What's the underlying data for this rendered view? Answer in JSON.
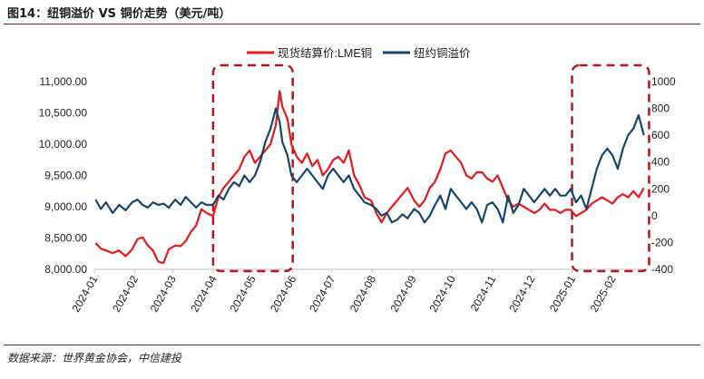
{
  "header": {
    "title": "图14：纽铜溢价 VS 铜价走势（美元/吨）"
  },
  "footer": {
    "source": "数据来源：世界黄金协会，中信建投"
  },
  "chart_data": {
    "type": "line",
    "title": "图14：纽铜溢价 VS 铜价走势（美元/吨）",
    "xlabel": "",
    "ylabel": "",
    "x_tick_labels": [
      "2024-01",
      "2024-02",
      "2024-03",
      "2024-04",
      "2024-05",
      "2024-06",
      "2024-07",
      "2024-08",
      "2024-09",
      "2024-10",
      "2024-11",
      "2024-12",
      "2025-01",
      "2025-02"
    ],
    "y_left": {
      "min": 8000,
      "max": 11000,
      "ticks": [
        8000,
        8500,
        9000,
        9500,
        10000,
        10500,
        11000
      ],
      "tick_labels": [
        "8,000.00",
        "8,500.00",
        "9,000.00",
        "9,500.00",
        "10,000.00",
        "10,500.00",
        "11,000.00"
      ]
    },
    "y_right": {
      "min": -400,
      "max": 1000,
      "ticks": [
        -400,
        -200,
        0,
        200,
        400,
        600,
        800,
        1000
      ],
      "tick_labels": [
        "-400",
        "-200",
        "0",
        "200",
        "400",
        "600",
        "800",
        "1000"
      ]
    },
    "legend_position": "top-center",
    "grid": false,
    "series": [
      {
        "name": "现货结算价:LME铜",
        "axis": "left",
        "color": "#e41a1c",
        "points": [
          [
            "2024-01-02",
            8420
          ],
          [
            "2024-01-06",
            8330
          ],
          [
            "2024-01-10",
            8300
          ],
          [
            "2024-01-15",
            8260
          ],
          [
            "2024-01-20",
            8300
          ],
          [
            "2024-01-25",
            8210
          ],
          [
            "2024-01-30",
            8320
          ],
          [
            "2024-02-03",
            8480
          ],
          [
            "2024-02-07",
            8510
          ],
          [
            "2024-02-11",
            8380
          ],
          [
            "2024-02-15",
            8300
          ],
          [
            "2024-02-19",
            8120
          ],
          [
            "2024-02-23",
            8100
          ],
          [
            "2024-02-27",
            8320
          ],
          [
            "2024-03-03",
            8380
          ],
          [
            "2024-03-07",
            8370
          ],
          [
            "2024-03-11",
            8450
          ],
          [
            "2024-03-15",
            8600
          ],
          [
            "2024-03-19",
            8700
          ],
          [
            "2024-03-23",
            8960
          ],
          [
            "2024-03-27",
            8900
          ],
          [
            "2024-04-01",
            8850
          ],
          [
            "2024-04-05",
            9150
          ],
          [
            "2024-04-09",
            9300
          ],
          [
            "2024-04-13",
            9400
          ],
          [
            "2024-04-17",
            9500
          ],
          [
            "2024-04-21",
            9600
          ],
          [
            "2024-04-25",
            9800
          ],
          [
            "2024-04-29",
            9900
          ],
          [
            "2024-05-03",
            9700
          ],
          [
            "2024-05-07",
            9800
          ],
          [
            "2024-05-11",
            9900
          ],
          [
            "2024-05-15",
            10000
          ],
          [
            "2024-05-19",
            10300
          ],
          [
            "2024-05-22",
            10850
          ],
          [
            "2024-05-24",
            10600
          ],
          [
            "2024-05-28",
            10400
          ],
          [
            "2024-05-31",
            10000
          ],
          [
            "2024-06-04",
            9800
          ],
          [
            "2024-06-08",
            9700
          ],
          [
            "2024-06-12",
            9850
          ],
          [
            "2024-06-16",
            9650
          ],
          [
            "2024-06-20",
            9750
          ],
          [
            "2024-06-24",
            9500
          ],
          [
            "2024-06-28",
            9600
          ],
          [
            "2024-07-02",
            9750
          ],
          [
            "2024-07-06",
            9800
          ],
          [
            "2024-07-10",
            9700
          ],
          [
            "2024-07-14",
            9900
          ],
          [
            "2024-07-18",
            9500
          ],
          [
            "2024-07-22",
            9350
          ],
          [
            "2024-07-26",
            9150
          ],
          [
            "2024-07-31",
            9100
          ],
          [
            "2024-08-04",
            8900
          ],
          [
            "2024-08-08",
            8750
          ],
          [
            "2024-08-12",
            8900
          ],
          [
            "2024-08-16",
            9000
          ],
          [
            "2024-08-20",
            9100
          ],
          [
            "2024-08-24",
            9200
          ],
          [
            "2024-08-28",
            9300
          ],
          [
            "2024-09-02",
            9100
          ],
          [
            "2024-09-06",
            9000
          ],
          [
            "2024-09-10",
            9100
          ],
          [
            "2024-09-14",
            9300
          ],
          [
            "2024-09-18",
            9400
          ],
          [
            "2024-09-22",
            9600
          ],
          [
            "2024-09-26",
            9850
          ],
          [
            "2024-09-30",
            9900
          ],
          [
            "2024-10-04",
            9800
          ],
          [
            "2024-10-08",
            9700
          ],
          [
            "2024-10-12",
            9500
          ],
          [
            "2024-10-16",
            9450
          ],
          [
            "2024-10-20",
            9550
          ],
          [
            "2024-10-24",
            9550
          ],
          [
            "2024-10-28",
            9450
          ],
          [
            "2024-11-01",
            9400
          ],
          [
            "2024-11-05",
            9500
          ],
          [
            "2024-11-09",
            9300
          ],
          [
            "2024-11-13",
            9100
          ],
          [
            "2024-11-17",
            9000
          ],
          [
            "2024-11-21",
            9050
          ],
          [
            "2024-11-25",
            9000
          ],
          [
            "2024-11-29",
            8950
          ],
          [
            "2024-12-03",
            8900
          ],
          [
            "2024-12-07",
            8950
          ],
          [
            "2024-12-11",
            9050
          ],
          [
            "2024-12-15",
            8950
          ],
          [
            "2024-12-19",
            8950
          ],
          [
            "2024-12-23",
            8900
          ],
          [
            "2024-12-27",
            8950
          ],
          [
            "2024-12-31",
            8950
          ],
          [
            "2025-01-04",
            8850
          ],
          [
            "2025-01-08",
            8900
          ],
          [
            "2025-01-12",
            8950
          ],
          [
            "2025-01-16",
            9050
          ],
          [
            "2025-01-20",
            9100
          ],
          [
            "2025-01-24",
            9150
          ],
          [
            "2025-01-28",
            9100
          ],
          [
            "2025-02-01",
            9050
          ],
          [
            "2025-02-05",
            9150
          ],
          [
            "2025-02-09",
            9200
          ],
          [
            "2025-02-13",
            9150
          ],
          [
            "2025-02-17",
            9250
          ],
          [
            "2025-02-21",
            9150
          ],
          [
            "2025-02-25",
            9300
          ]
        ]
      },
      {
        "name": "纽约铜溢价",
        "axis": "right",
        "color": "#17466b",
        "points": [
          [
            "2024-01-02",
            120
          ],
          [
            "2024-01-06",
            50
          ],
          [
            "2024-01-10",
            100
          ],
          [
            "2024-01-15",
            20
          ],
          [
            "2024-01-20",
            80
          ],
          [
            "2024-01-25",
            40
          ],
          [
            "2024-01-30",
            100
          ],
          [
            "2024-02-03",
            120
          ],
          [
            "2024-02-07",
            80
          ],
          [
            "2024-02-11",
            60
          ],
          [
            "2024-02-15",
            100
          ],
          [
            "2024-02-19",
            80
          ],
          [
            "2024-02-23",
            90
          ],
          [
            "2024-02-27",
            60
          ],
          [
            "2024-03-03",
            120
          ],
          [
            "2024-03-07",
            80
          ],
          [
            "2024-03-11",
            140
          ],
          [
            "2024-03-15",
            100
          ],
          [
            "2024-03-19",
            60
          ],
          [
            "2024-03-23",
            100
          ],
          [
            "2024-03-27",
            80
          ],
          [
            "2024-04-01",
            80
          ],
          [
            "2024-04-05",
            150
          ],
          [
            "2024-04-09",
            120
          ],
          [
            "2024-04-13",
            200
          ],
          [
            "2024-04-17",
            250
          ],
          [
            "2024-04-21",
            220
          ],
          [
            "2024-04-25",
            300
          ],
          [
            "2024-04-29",
            250
          ],
          [
            "2024-05-03",
            300
          ],
          [
            "2024-05-07",
            400
          ],
          [
            "2024-05-11",
            550
          ],
          [
            "2024-05-15",
            650
          ],
          [
            "2024-05-19",
            800
          ],
          [
            "2024-05-22",
            700
          ],
          [
            "2024-05-24",
            550
          ],
          [
            "2024-05-28",
            450
          ],
          [
            "2024-05-31",
            300
          ],
          [
            "2024-06-04",
            250
          ],
          [
            "2024-06-08",
            300
          ],
          [
            "2024-06-12",
            350
          ],
          [
            "2024-06-16",
            300
          ],
          [
            "2024-06-20",
            250
          ],
          [
            "2024-06-24",
            200
          ],
          [
            "2024-06-28",
            300
          ],
          [
            "2024-07-02",
            350
          ],
          [
            "2024-07-06",
            300
          ],
          [
            "2024-07-10",
            250
          ],
          [
            "2024-07-14",
            300
          ],
          [
            "2024-07-18",
            200
          ],
          [
            "2024-07-22",
            150
          ],
          [
            "2024-07-26",
            100
          ],
          [
            "2024-07-31",
            80
          ],
          [
            "2024-08-04",
            50
          ],
          [
            "2024-08-08",
            0
          ],
          [
            "2024-08-12",
            20
          ],
          [
            "2024-08-16",
            -50
          ],
          [
            "2024-08-20",
            -30
          ],
          [
            "2024-08-24",
            10
          ],
          [
            "2024-08-28",
            -20
          ],
          [
            "2024-09-02",
            50
          ],
          [
            "2024-09-06",
            20
          ],
          [
            "2024-09-10",
            -50
          ],
          [
            "2024-09-14",
            0
          ],
          [
            "2024-09-18",
            80
          ],
          [
            "2024-09-22",
            150
          ],
          [
            "2024-09-26",
            50
          ],
          [
            "2024-09-30",
            200
          ],
          [
            "2024-10-04",
            150
          ],
          [
            "2024-10-08",
            100
          ],
          [
            "2024-10-12",
            50
          ],
          [
            "2024-10-16",
            100
          ],
          [
            "2024-10-20",
            50
          ],
          [
            "2024-10-24",
            -50
          ],
          [
            "2024-10-28",
            80
          ],
          [
            "2024-11-01",
            100
          ],
          [
            "2024-11-05",
            50
          ],
          [
            "2024-11-09",
            -50
          ],
          [
            "2024-11-13",
            150
          ],
          [
            "2024-11-17",
            20
          ],
          [
            "2024-11-21",
            80
          ],
          [
            "2024-11-25",
            200
          ],
          [
            "2024-11-29",
            150
          ],
          [
            "2024-12-03",
            100
          ],
          [
            "2024-12-07",
            150
          ],
          [
            "2024-12-11",
            200
          ],
          [
            "2024-12-15",
            150
          ],
          [
            "2024-12-19",
            200
          ],
          [
            "2024-12-23",
            150
          ],
          [
            "2024-12-27",
            150
          ],
          [
            "2024-12-31",
            200
          ],
          [
            "2025-01-04",
            100
          ],
          [
            "2025-01-08",
            150
          ],
          [
            "2025-01-12",
            50
          ],
          [
            "2025-01-16",
            200
          ],
          [
            "2025-01-20",
            350
          ],
          [
            "2025-01-24",
            450
          ],
          [
            "2025-01-28",
            500
          ],
          [
            "2025-02-01",
            450
          ],
          [
            "2025-02-05",
            350
          ],
          [
            "2025-02-09",
            500
          ],
          [
            "2025-02-13",
            600
          ],
          [
            "2025-02-17",
            650
          ],
          [
            "2025-02-21",
            750
          ],
          [
            "2025-02-25",
            600
          ]
        ]
      }
    ],
    "annotations": [
      {
        "type": "dashed-box",
        "color": "#b5161b",
        "x_from": "2024-04-01",
        "x_to": "2024-06-01",
        "y_from": 8000,
        "y_to": 11000
      },
      {
        "type": "dashed-box",
        "color": "#b5161b",
        "x_from": "2025-01-01",
        "x_to": "2025-03-01",
        "y_from": 8000,
        "y_to": 11000
      }
    ]
  }
}
